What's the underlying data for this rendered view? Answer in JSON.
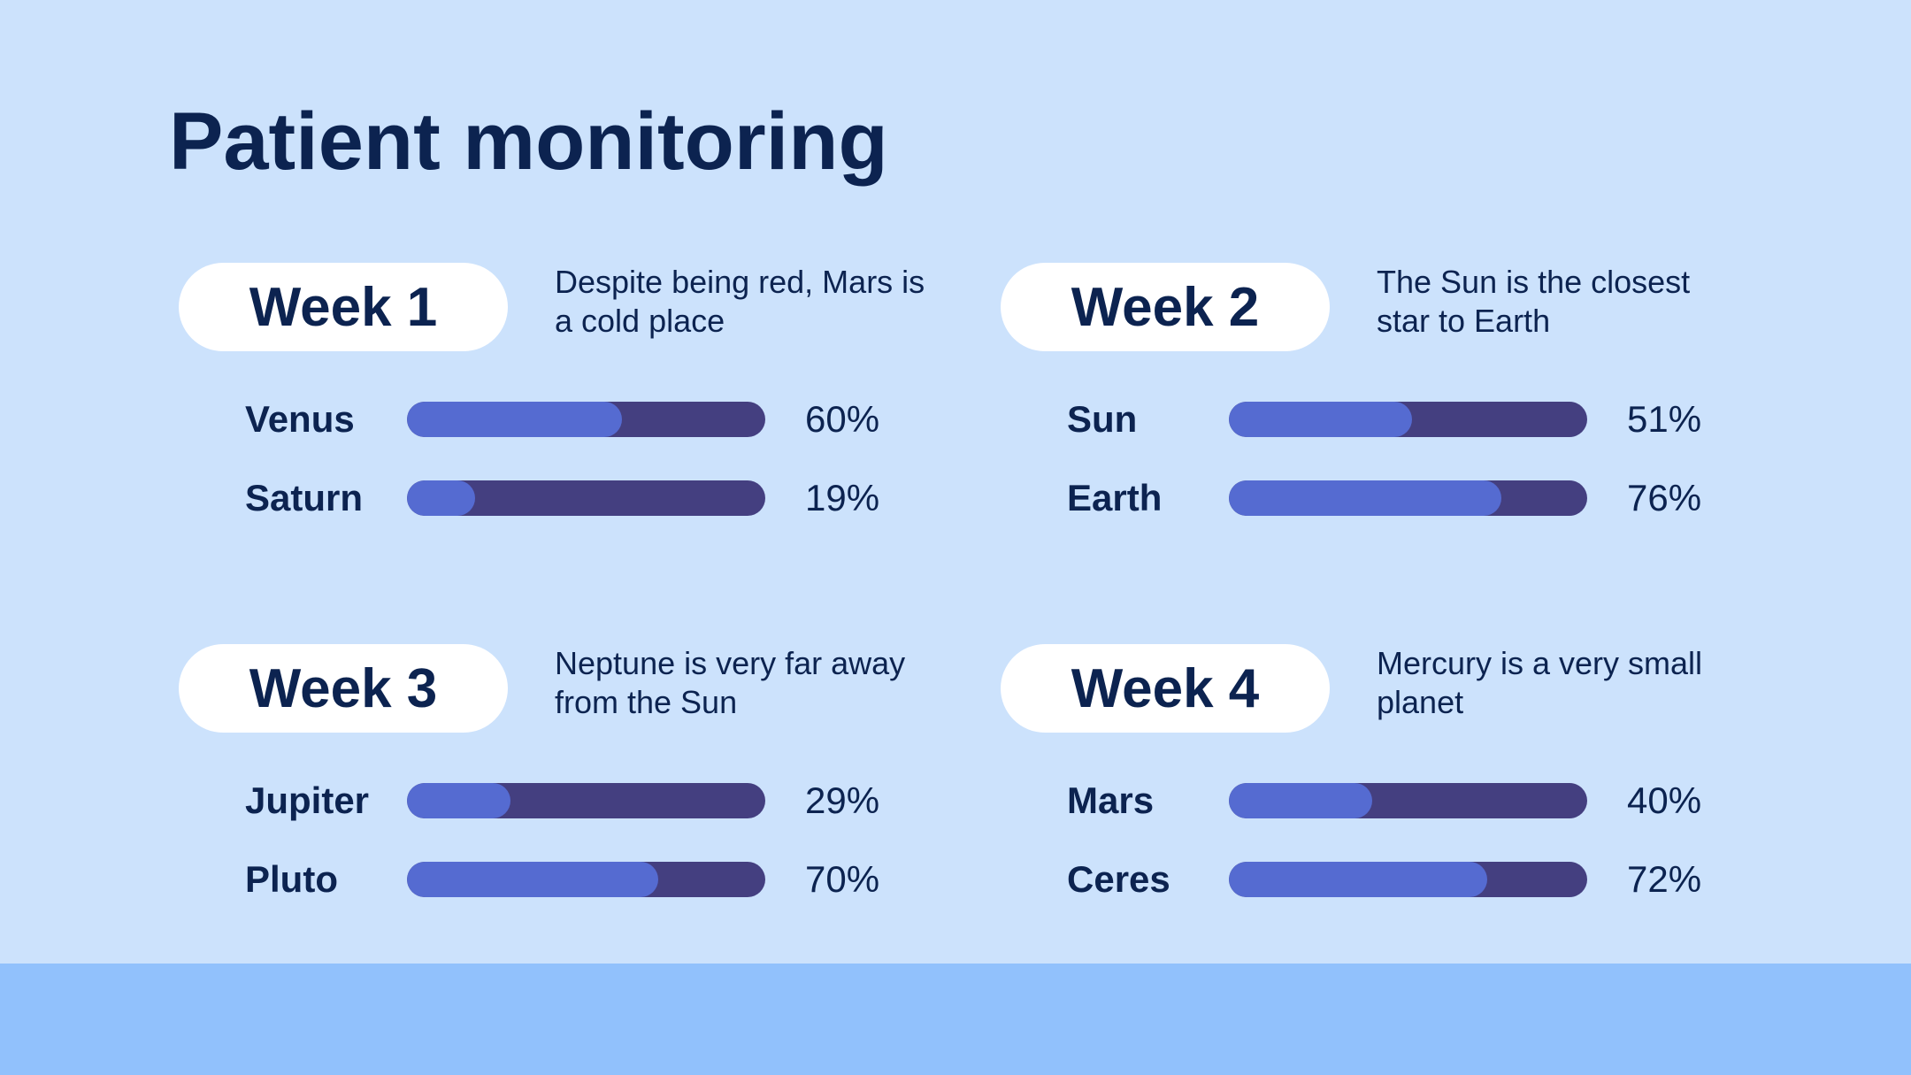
{
  "title": "Patient monitoring",
  "weeks": [
    {
      "label": "Week 1",
      "description": "Despite being red, Mars is a cold place",
      "rows": [
        {
          "name": "Venus",
          "percent": 60,
          "percent_label": "60%"
        },
        {
          "name": "Saturn",
          "percent": 19,
          "percent_label": "19%"
        }
      ]
    },
    {
      "label": "Week 2",
      "description": "The Sun is the closest star to Earth",
      "rows": [
        {
          "name": "Sun",
          "percent": 51,
          "percent_label": "51%"
        },
        {
          "name": "Earth",
          "percent": 76,
          "percent_label": "76%"
        }
      ]
    },
    {
      "label": "Week 3",
      "description": "Neptune is very far away from the Sun",
      "rows": [
        {
          "name": "Jupiter",
          "percent": 29,
          "percent_label": "29%"
        },
        {
          "name": "Pluto",
          "percent": 70,
          "percent_label": "70%"
        }
      ]
    },
    {
      "label": "Week 4",
      "description": "Mercury is a very small planet",
      "rows": [
        {
          "name": "Mars",
          "percent": 40,
          "percent_label": "40%"
        },
        {
          "name": "Ceres",
          "percent": 72,
          "percent_label": "72%"
        }
      ]
    }
  ],
  "colors": {
    "background": "#cce2fc",
    "footer": "#91c1fc",
    "text": "#0c2350",
    "track": "#443f80",
    "fill": "#556bd1",
    "pill": "#ffffff"
  }
}
